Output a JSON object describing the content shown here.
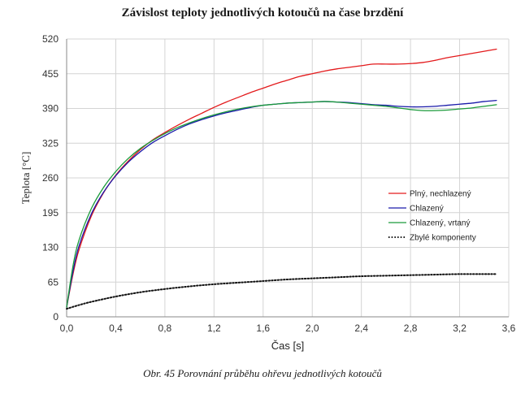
{
  "chart_data": {
    "type": "line",
    "title": "Závislost teploty jednotlivých kotoučů na čase brzdění",
    "caption": "Obr. 45 Porovnání průběhu ohřevu jednotlivých kotoučů",
    "xlabel": "Čas [s]",
    "ylabel": "Teplota [°C]",
    "xlim": [
      0,
      3.6
    ],
    "ylim": [
      0,
      520
    ],
    "xticks": [
      "0,0",
      "0,4",
      "0,8",
      "1,2",
      "1,6",
      "2,0",
      "2,4",
      "2,8",
      "3,2",
      "3,6"
    ],
    "xtick_values": [
      0,
      0.4,
      0.8,
      1.2,
      1.6,
      2.0,
      2.4,
      2.8,
      3.2,
      3.6
    ],
    "yticks": [
      "0",
      "65",
      "130",
      "195",
      "260",
      "325",
      "390",
      "455",
      "520"
    ],
    "ytick_values": [
      0,
      65,
      130,
      195,
      260,
      325,
      390,
      455,
      520
    ],
    "grid": true,
    "legend_position": "right",
    "series": [
      {
        "name": "Plný, nechlazený",
        "color": "#e31a1c",
        "style": "solid",
        "x": [
          0,
          0.05,
          0.1,
          0.2,
          0.3,
          0.4,
          0.5,
          0.6,
          0.7,
          0.8,
          0.9,
          1.0,
          1.1,
          1.2,
          1.3,
          1.4,
          1.5,
          1.6,
          1.7,
          1.8,
          1.9,
          2.0,
          2.1,
          2.2,
          2.3,
          2.4,
          2.5,
          2.6,
          2.7,
          2.8,
          2.9,
          3.0,
          3.1,
          3.2,
          3.3,
          3.4,
          3.5
        ],
        "y": [
          18,
          78,
          125,
          188,
          232,
          265,
          291,
          313,
          331,
          345,
          358,
          370,
          381,
          392,
          402,
          411,
          420,
          428,
          436,
          443,
          450,
          455,
          460,
          464,
          467,
          470,
          473,
          473,
          473,
          474,
          476,
          480,
          485,
          489,
          493,
          497,
          501
        ]
      },
      {
        "name": "Chlazený",
        "color": "#1a1aaa",
        "style": "solid",
        "x": [
          0,
          0.05,
          0.1,
          0.2,
          0.3,
          0.4,
          0.5,
          0.6,
          0.7,
          0.8,
          0.9,
          1.0,
          1.1,
          1.2,
          1.3,
          1.4,
          1.5,
          1.6,
          1.7,
          1.8,
          1.9,
          2.0,
          2.1,
          2.2,
          2.3,
          2.4,
          2.5,
          2.6,
          2.7,
          2.8,
          2.9,
          3.0,
          3.1,
          3.2,
          3.3,
          3.4,
          3.5
        ],
        "y": [
          18,
          83,
          132,
          192,
          233,
          264,
          289,
          309,
          326,
          339,
          351,
          361,
          369,
          376,
          382,
          387,
          392,
          396,
          398,
          400,
          401,
          402,
          403,
          402,
          401,
          399,
          397,
          396,
          394,
          393,
          393,
          394,
          396,
          398,
          400,
          403,
          405
        ]
      },
      {
        "name": "Chlazený, vrtaný",
        "color": "#1a9a3a",
        "style": "solid",
        "x": [
          0,
          0.05,
          0.1,
          0.2,
          0.3,
          0.4,
          0.5,
          0.6,
          0.7,
          0.8,
          0.9,
          1.0,
          1.1,
          1.2,
          1.3,
          1.4,
          1.5,
          1.6,
          1.7,
          1.8,
          1.9,
          2.0,
          2.1,
          2.2,
          2.3,
          2.4,
          2.5,
          2.6,
          2.7,
          2.8,
          2.9,
          3.0,
          3.1,
          3.2,
          3.3,
          3.4,
          3.5
        ],
        "y": [
          18,
          93,
          143,
          202,
          242,
          272,
          296,
          315,
          330,
          343,
          354,
          363,
          371,
          378,
          384,
          389,
          393,
          396,
          398,
          400,
          401,
          402,
          403,
          402,
          400,
          398,
          396,
          394,
          391,
          388,
          386,
          386,
          387,
          389,
          391,
          394,
          397
        ]
      },
      {
        "name": "Zbylé komponenty",
        "color": "#111111",
        "style": "dotted",
        "x": [
          0,
          0.1,
          0.2,
          0.4,
          0.6,
          0.8,
          1.0,
          1.2,
          1.4,
          1.6,
          1.8,
          2.0,
          2.2,
          2.4,
          2.6,
          2.8,
          3.0,
          3.2,
          3.4,
          3.5
        ],
        "y": [
          15,
          22,
          28,
          38,
          46,
          52,
          57,
          61,
          64,
          67,
          70,
          72,
          74,
          76,
          77,
          78,
          79,
          80,
          80,
          80
        ]
      }
    ]
  }
}
